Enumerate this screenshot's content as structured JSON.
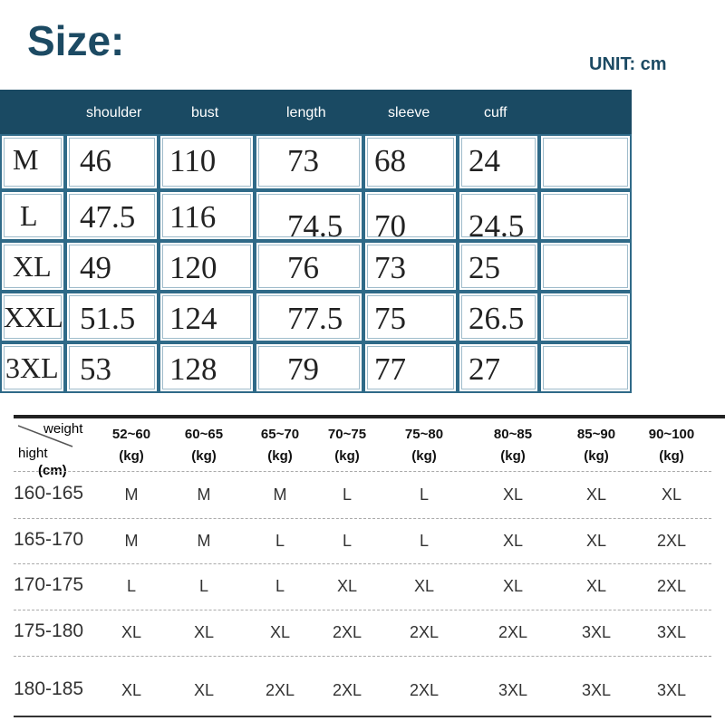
{
  "header": {
    "title": "Size:",
    "unit": "UNIT: cm"
  },
  "table": {
    "columns": [
      "shoulder",
      "bust",
      "length",
      "sleeve",
      "cuff"
    ],
    "rows": [
      [
        "M",
        "46",
        "110",
        "73",
        "68",
        "24"
      ],
      [
        "L",
        "47.5",
        "116",
        "74.5",
        "70",
        "24.5"
      ],
      [
        "XL",
        "49",
        "120",
        "76",
        "73",
        "25"
      ],
      [
        "XXL",
        "51.5",
        "124",
        "77.5",
        "75",
        "26.5"
      ],
      [
        "3XL",
        "53",
        "128",
        "79",
        "77",
        "27"
      ]
    ]
  },
  "guide": {
    "corner": {
      "weight": "weight",
      "height": "hight",
      "unit": "(cm)"
    },
    "columns": [
      {
        "range": "52~60",
        "unit": "(kg)"
      },
      {
        "range": "60~65",
        "unit": "(kg)"
      },
      {
        "range": "65~70",
        "unit": "(kg)"
      },
      {
        "range": "70~75",
        "unit": "(kg)"
      },
      {
        "range": "75~80",
        "unit": "(kg)"
      },
      {
        "range": "80~85",
        "unit": "(kg)"
      },
      {
        "range": "85~90",
        "unit": "(kg)"
      },
      {
        "range": "90~100",
        "unit": "(kg)"
      }
    ],
    "rows": [
      [
        "160-165",
        "M",
        "M",
        "M",
        "L",
        "L",
        "XL",
        "XL",
        "XL"
      ],
      [
        "165-170",
        "M",
        "M",
        "L",
        "L",
        "L",
        "XL",
        "XL",
        "2XL"
      ],
      [
        "170-175",
        "L",
        "L",
        "L",
        "XL",
        "XL",
        "XL",
        "XL",
        "2XL"
      ],
      [
        "175-180",
        "XL",
        "XL",
        "XL",
        "2XL",
        "2XL",
        "2XL",
        "3XL",
        "3XL"
      ],
      [
        "180-185",
        "XL",
        "XL",
        "2XL",
        "2XL",
        "2XL",
        "3XL",
        "3XL",
        "3XL"
      ]
    ]
  }
}
